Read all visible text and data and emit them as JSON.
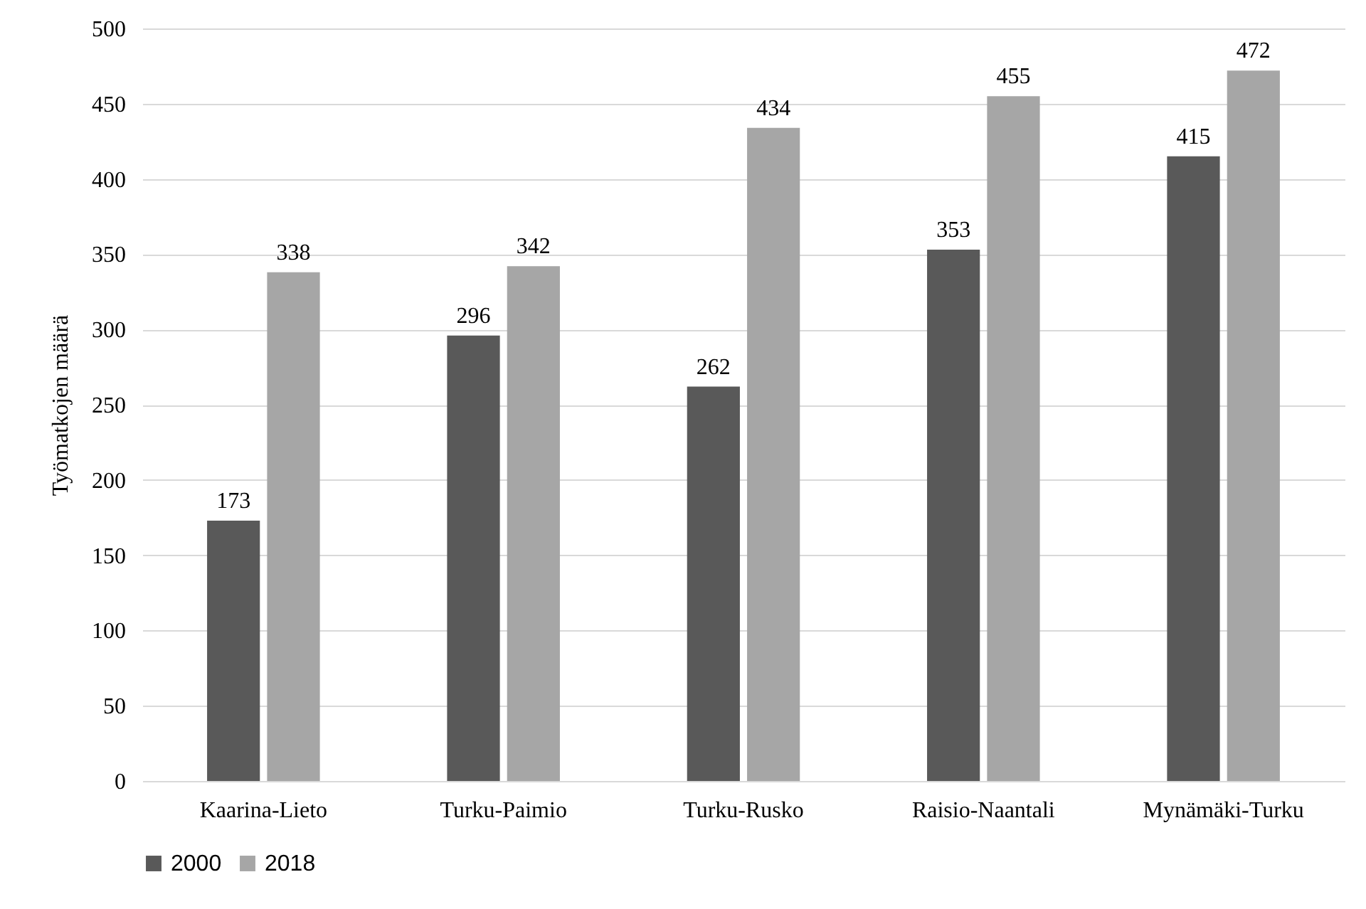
{
  "chart_data": {
    "type": "bar",
    "ylabel": "Työmatkojen määrä",
    "categories": [
      "Kaarina-Lieto",
      "Turku-Paimio",
      "Turku-Rusko",
      "Raisio-Naantali",
      "Mynämäki-Turku"
    ],
    "series": [
      {
        "name": "2000",
        "color": "#595959",
        "values": [
          173,
          296,
          262,
          353,
          415
        ]
      },
      {
        "name": "2018",
        "color": "#a6a6a6",
        "values": [
          338,
          342,
          434,
          455,
          472
        ]
      }
    ],
    "ylim": [
      0,
      500
    ],
    "yticks": [
      0,
      50,
      100,
      150,
      200,
      250,
      300,
      350,
      400,
      450,
      500
    ],
    "grid": "y",
    "legend": "bottom",
    "data_labels": true
  }
}
